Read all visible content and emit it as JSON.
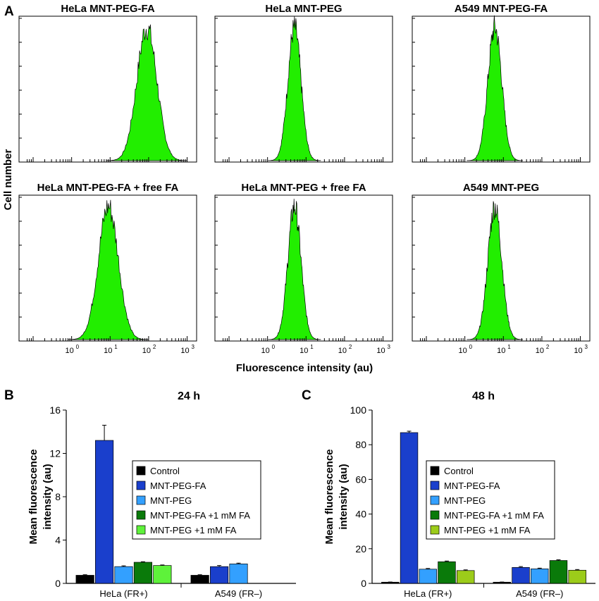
{
  "panel_labels": {
    "a": "A",
    "b": "B",
    "c": "C"
  },
  "histograms": {
    "ylabel": "Cell number",
    "xlabel": "Fluorescence intensity (au)",
    "xscale": "log",
    "xticks": [
      "10",
      "10",
      "10",
      "10"
    ],
    "xtick_exponents": [
      "0",
      "1",
      "2",
      "3"
    ],
    "fill_color": "#22ee00",
    "panels": [
      {
        "title": "HeLa MNT-PEG-FA",
        "peak_au": 90,
        "spread_log": 0.26,
        "show_xticks": false
      },
      {
        "title": "HeLa MNT-PEG",
        "peak_au": 5,
        "spread_log": 0.17,
        "show_xticks": false
      },
      {
        "title": "A549 MNT-PEG-FA",
        "peak_au": 6,
        "spread_log": 0.18,
        "show_xticks": false
      },
      {
        "title": "HeLa MNT-PEG-FA + free FA",
        "peak_au": 9,
        "spread_log": 0.26,
        "show_xticks": true
      },
      {
        "title": "HeLa MNT-PEG + free FA",
        "peak_au": 5,
        "spread_log": 0.17,
        "show_xticks": true
      },
      {
        "title": "A549 MNT-PEG",
        "peak_au": 6,
        "spread_log": 0.18,
        "show_xticks": true
      }
    ]
  },
  "chart_data": [
    {
      "type": "bar",
      "title": "24 h",
      "ylabel": "Mean fluorescence intensity (au)",
      "ylabel_lines": [
        "Mean fluorescence",
        "intensity (au)"
      ],
      "ylim": [
        0,
        16
      ],
      "yticks": [
        0,
        4,
        8,
        12,
        16
      ],
      "categories": [
        "HeLa (FR+)",
        "A549 (FR–)"
      ],
      "legend_position": "right",
      "series": [
        {
          "name": "Control",
          "color": "#000000",
          "values": [
            0.75,
            0.75
          ],
          "errors": [
            0.05,
            0.05
          ]
        },
        {
          "name": "MNT-PEG-FA",
          "color": "#1a3fcc",
          "values": [
            13.2,
            1.55
          ],
          "errors": [
            1.4,
            0.1
          ]
        },
        {
          "name": "MNT-PEG",
          "color": "#33a0ff",
          "values": [
            1.55,
            1.8
          ],
          "errors": [
            0.07,
            0.07
          ]
        },
        {
          "name": "MNT-PEG-FA +1 mM FA",
          "color": "#0a7a0a",
          "values": [
            1.95,
            null
          ],
          "errors": [
            0.05,
            null
          ]
        },
        {
          "name": "MNT-PEG +1 mM FA",
          "color": "#5ef23a",
          "values": [
            1.65,
            null
          ],
          "errors": [
            0.05,
            null
          ]
        }
      ]
    },
    {
      "type": "bar",
      "title": "48 h",
      "ylabel": "Mean fluorescence intensity (au)",
      "ylabel_lines": [
        "Mean fluorescence",
        "intensity (au)"
      ],
      "ylim": [
        0,
        100
      ],
      "yticks": [
        0,
        20,
        40,
        60,
        80,
        100
      ],
      "categories": [
        "HeLa (FR+)",
        "A549 (FR–)"
      ],
      "legend_position": "right",
      "series": [
        {
          "name": "Control",
          "color": "#000000",
          "values": [
            0.7,
            0.7
          ],
          "errors": [
            0.1,
            0.1
          ]
        },
        {
          "name": "MNT-PEG-FA",
          "color": "#1a3fcc",
          "values": [
            87,
            9.2
          ],
          "errors": [
            0.8,
            0.5
          ]
        },
        {
          "name": "MNT-PEG",
          "color": "#33a0ff",
          "values": [
            8.2,
            8.4
          ],
          "errors": [
            0.4,
            0.4
          ]
        },
        {
          "name": "MNT-PEG-FA +1 mM FA",
          "color": "#0a7a0a",
          "values": [
            12.5,
            13.2
          ],
          "errors": [
            0.4,
            0.4
          ]
        },
        {
          "name": "MNT-PEG +1 mM FA",
          "color": "#9ccc1a",
          "values": [
            7.4,
            7.6
          ],
          "errors": [
            0.4,
            0.4
          ]
        }
      ]
    }
  ]
}
